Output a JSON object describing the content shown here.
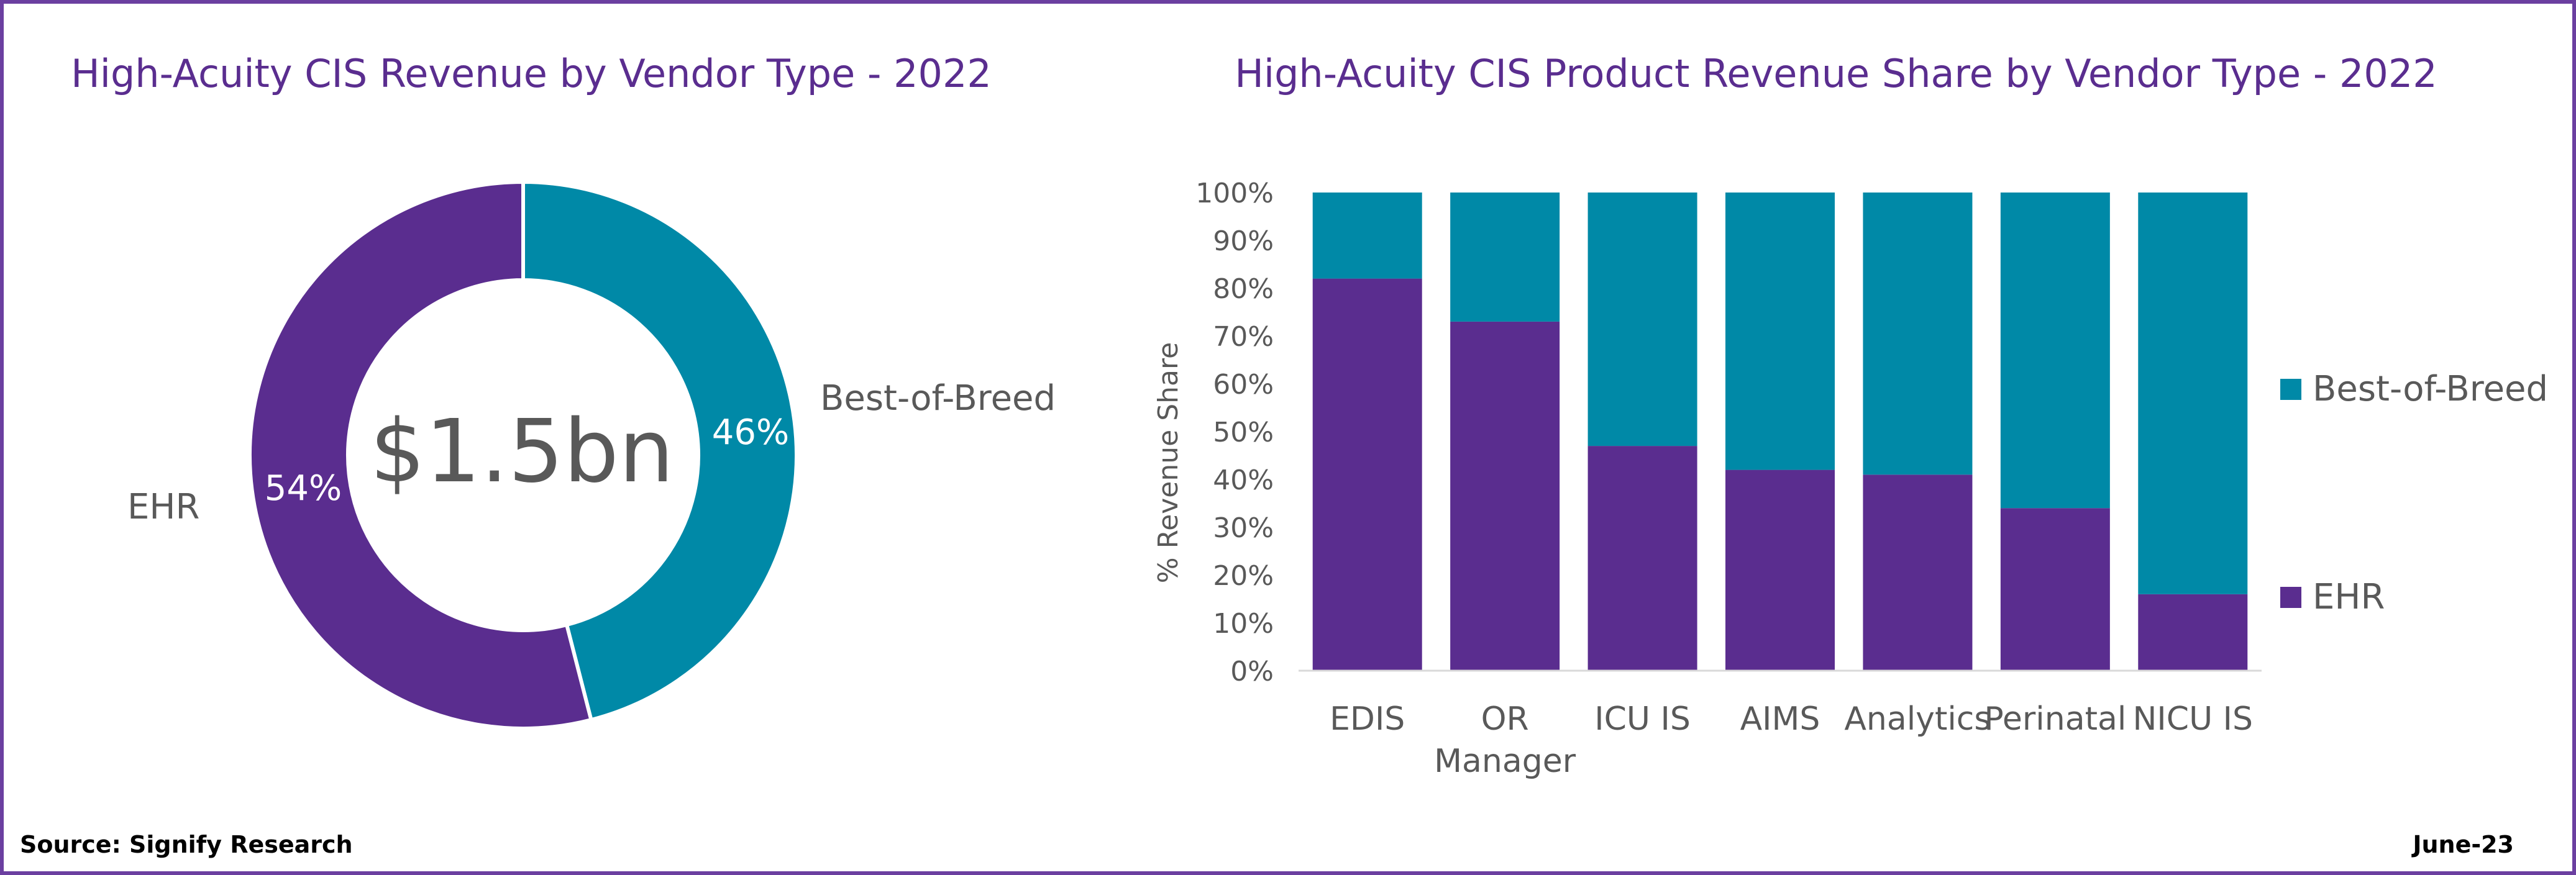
{
  "colors": {
    "ehr": "#5a2d8f",
    "best_of_breed": "#0089a7",
    "title": "#5a2d8f",
    "text": "#595959",
    "frame": "#6b3fa0"
  },
  "footer": {
    "source": "Source: Signify Research",
    "date": "June-23"
  },
  "chart_data": [
    {
      "type": "pie",
      "title": "High-Acuity CIS Revenue by Vendor Type - 2022",
      "center_label": "$1.5bn",
      "slices": [
        {
          "name": "Best-of-Breed",
          "value": 46,
          "label": "46%"
        },
        {
          "name": "EHR",
          "value": 54,
          "label": "54%"
        }
      ]
    },
    {
      "type": "bar",
      "stacked": true,
      "title": "High-Acuity CIS Product Revenue Share by Vendor Type - 2022",
      "ylabel": "% Revenue Share",
      "ylim": [
        0,
        100
      ],
      "yticks": [
        "0%",
        "10%",
        "20%",
        "30%",
        "40%",
        "50%",
        "60%",
        "70%",
        "80%",
        "90%",
        "100%"
      ],
      "categories": [
        "EDIS",
        "OR Manager",
        "ICU IS",
        "AIMS",
        "Analytics",
        "Perinatal",
        "NICU IS"
      ],
      "series": [
        {
          "name": "EHR",
          "values": [
            82,
            73,
            47,
            42,
            41,
            34,
            16
          ]
        },
        {
          "name": "Best-of-Breed",
          "values": [
            18,
            27,
            53,
            58,
            59,
            66,
            84
          ]
        }
      ],
      "legend": "right",
      "grid": false
    }
  ]
}
